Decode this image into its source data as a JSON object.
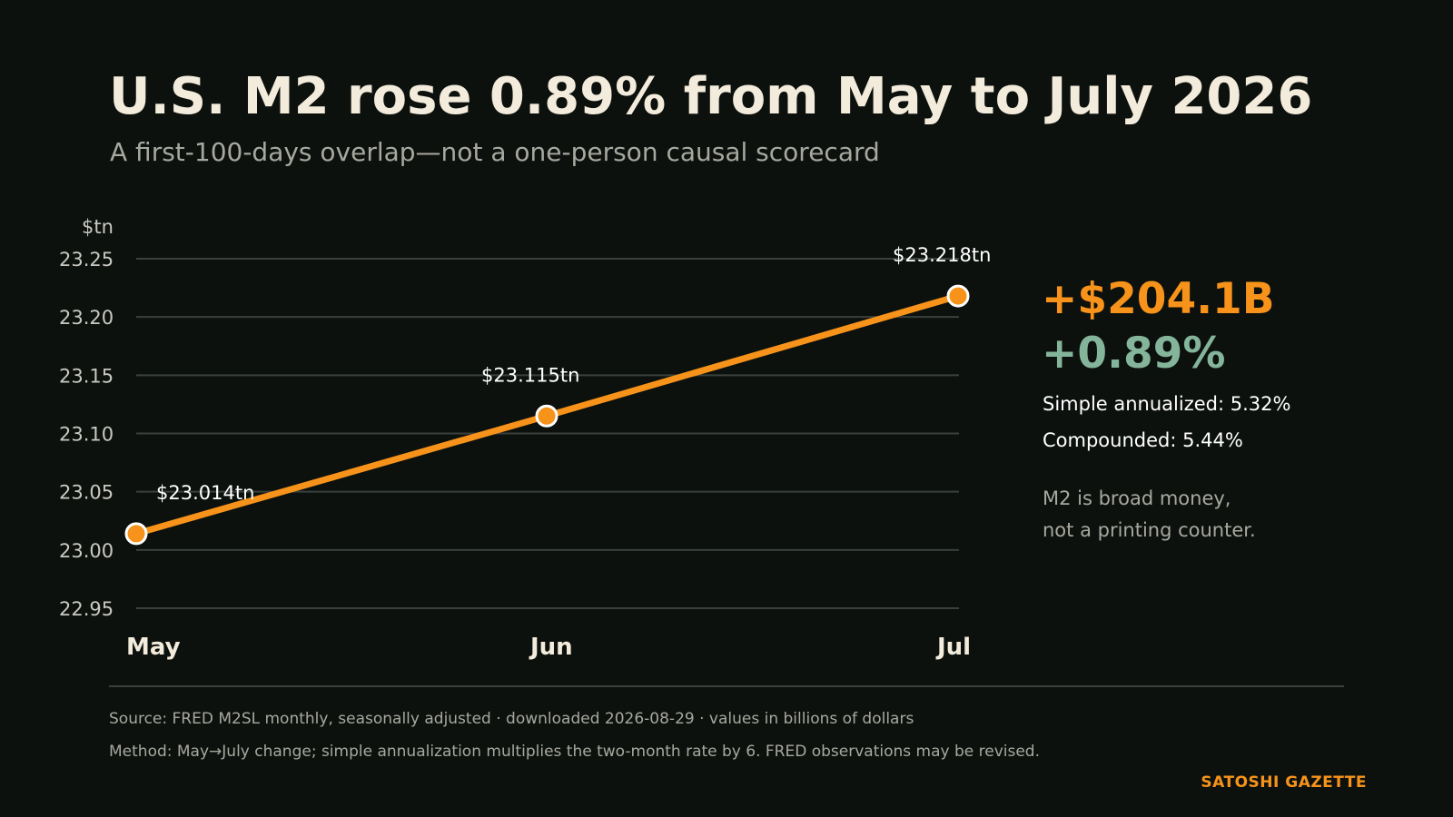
{
  "colors": {
    "background": "#0d110e",
    "title": "#f3ecdc",
    "subtitle": "#a7a89f",
    "accent": "#f7931a",
    "positive": "#84b59a",
    "text": "#ffffff",
    "muted": "#a7a89f",
    "grid": "#3a403c",
    "tick": "#c9c9c2"
  },
  "headline": {
    "title": "U.S. M2 rose 0.89% from May to July 2026",
    "subtitle": "A first-100-days overlap—not a one-person causal scorecard"
  },
  "chart_data": {
    "type": "line",
    "ylabel": "$tn",
    "ylim": [
      22.95,
      23.25
    ],
    "yticks": [
      23.25,
      23.2,
      23.15,
      23.1,
      23.05,
      23.0,
      22.95
    ],
    "ytick_labels": [
      "23.25",
      "23.20",
      "23.15",
      "23.10",
      "23.05",
      "23.00",
      "22.95"
    ],
    "grid": true,
    "categories": [
      "May",
      "Jun",
      "Jul"
    ],
    "values": [
      23.014,
      23.115,
      23.218
    ],
    "data_labels": [
      "$23.014tn",
      "$23.115tn",
      "$23.218tn"
    ]
  },
  "summary": {
    "change_abs": "+$204.1B",
    "change_pct": "+0.89%",
    "simple_annualized": "Simple annualized: 5.32%",
    "compounded": "Compounded: 5.44%",
    "note_line1": "M2 is broad money,",
    "note_line2": "not a printing counter."
  },
  "footer": {
    "source": "Source: FRED M2SL monthly, seasonally adjusted · downloaded 2026-08-29 · values in billions of dollars",
    "method": "Method: May→July change; simple annualization multiplies the two-month rate by 6. FRED observations may be revised.",
    "brand": "SATOSHI GAZETTE"
  }
}
